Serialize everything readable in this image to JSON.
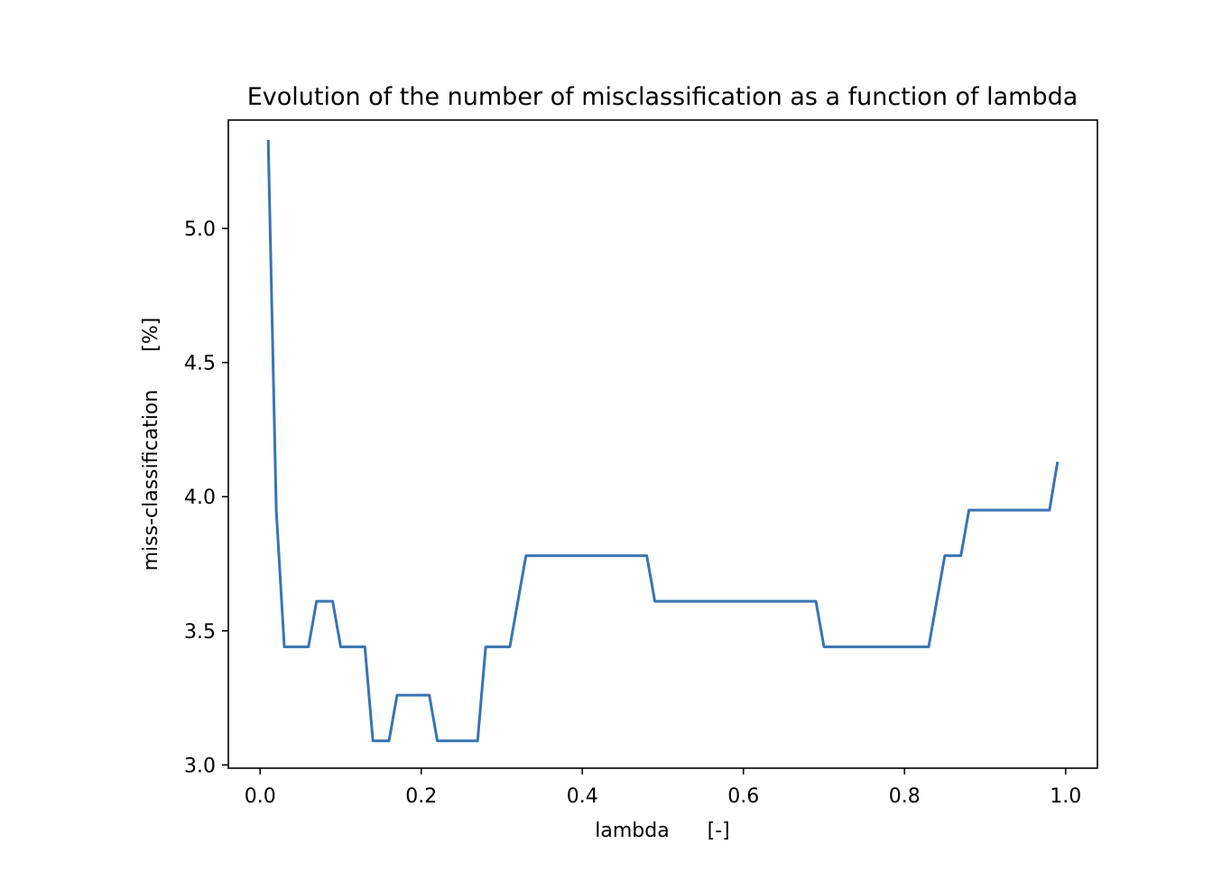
{
  "chart_data": {
    "type": "line",
    "title": "Evolution of the number of misclassification as a function of lambda",
    "xlabel": "lambda      [-]",
    "ylabel": "miss-classification      [%]",
    "xlim": [
      -0.0395,
      1.0395
    ],
    "ylim": [
      2.988,
      5.404
    ],
    "xticks": [
      0.0,
      0.2,
      0.4,
      0.6,
      0.8,
      1.0
    ],
    "xtick_labels": [
      "0.0",
      "0.2",
      "0.4",
      "0.6",
      "0.8",
      "1.0"
    ],
    "yticks": [
      3.0,
      3.5,
      4.0,
      4.5,
      5.0
    ],
    "ytick_labels": [
      "3.0",
      "3.5",
      "4.0",
      "4.5",
      "5.0"
    ],
    "grid": false,
    "legend": null,
    "line_color": "#3a74b0",
    "series": [
      {
        "x": [
          0.01,
          0.02,
          0.03,
          0.04,
          0.05,
          0.06,
          0.07,
          0.08,
          0.09,
          0.1,
          0.11,
          0.12,
          0.13,
          0.14,
          0.15,
          0.16,
          0.17,
          0.18,
          0.19,
          0.2,
          0.21,
          0.22,
          0.23,
          0.24,
          0.25,
          0.26,
          0.27,
          0.28,
          0.29,
          0.3,
          0.31,
          0.32,
          0.33,
          0.34,
          0.35,
          0.36,
          0.37,
          0.38,
          0.39,
          0.4,
          0.41,
          0.42,
          0.43,
          0.44,
          0.45,
          0.46,
          0.47,
          0.48,
          0.49,
          0.5,
          0.51,
          0.52,
          0.53,
          0.54,
          0.55,
          0.56,
          0.57,
          0.58,
          0.59,
          0.6,
          0.61,
          0.62,
          0.63,
          0.64,
          0.65,
          0.66,
          0.67,
          0.68,
          0.69,
          0.7,
          0.71,
          0.72,
          0.73,
          0.74,
          0.75,
          0.76,
          0.77,
          0.78,
          0.79,
          0.8,
          0.81,
          0.82,
          0.83,
          0.84,
          0.85,
          0.86,
          0.87,
          0.88,
          0.89,
          0.9,
          0.91,
          0.92,
          0.93,
          0.94,
          0.95,
          0.96,
          0.97,
          0.98,
          0.99
        ],
        "values": [
          5.33,
          3.95,
          3.44,
          3.44,
          3.44,
          3.44,
          3.61,
          3.61,
          3.61,
          3.44,
          3.44,
          3.44,
          3.44,
          3.09,
          3.09,
          3.09,
          3.26,
          3.26,
          3.26,
          3.26,
          3.26,
          3.09,
          3.09,
          3.09,
          3.09,
          3.09,
          3.09,
          3.44,
          3.44,
          3.44,
          3.44,
          3.61,
          3.78,
          3.78,
          3.78,
          3.78,
          3.78,
          3.78,
          3.78,
          3.78,
          3.78,
          3.78,
          3.78,
          3.78,
          3.78,
          3.78,
          3.78,
          3.78,
          3.61,
          3.61,
          3.61,
          3.61,
          3.61,
          3.61,
          3.61,
          3.61,
          3.61,
          3.61,
          3.61,
          3.61,
          3.61,
          3.61,
          3.61,
          3.61,
          3.61,
          3.61,
          3.61,
          3.61,
          3.61,
          3.44,
          3.44,
          3.44,
          3.44,
          3.44,
          3.44,
          3.44,
          3.44,
          3.44,
          3.44,
          3.44,
          3.44,
          3.44,
          3.44,
          3.61,
          3.78,
          3.78,
          3.78,
          3.95,
          3.95,
          3.95,
          3.95,
          3.95,
          3.95,
          3.95,
          3.95,
          3.95,
          3.95,
          3.95,
          4.13
        ]
      }
    ]
  }
}
